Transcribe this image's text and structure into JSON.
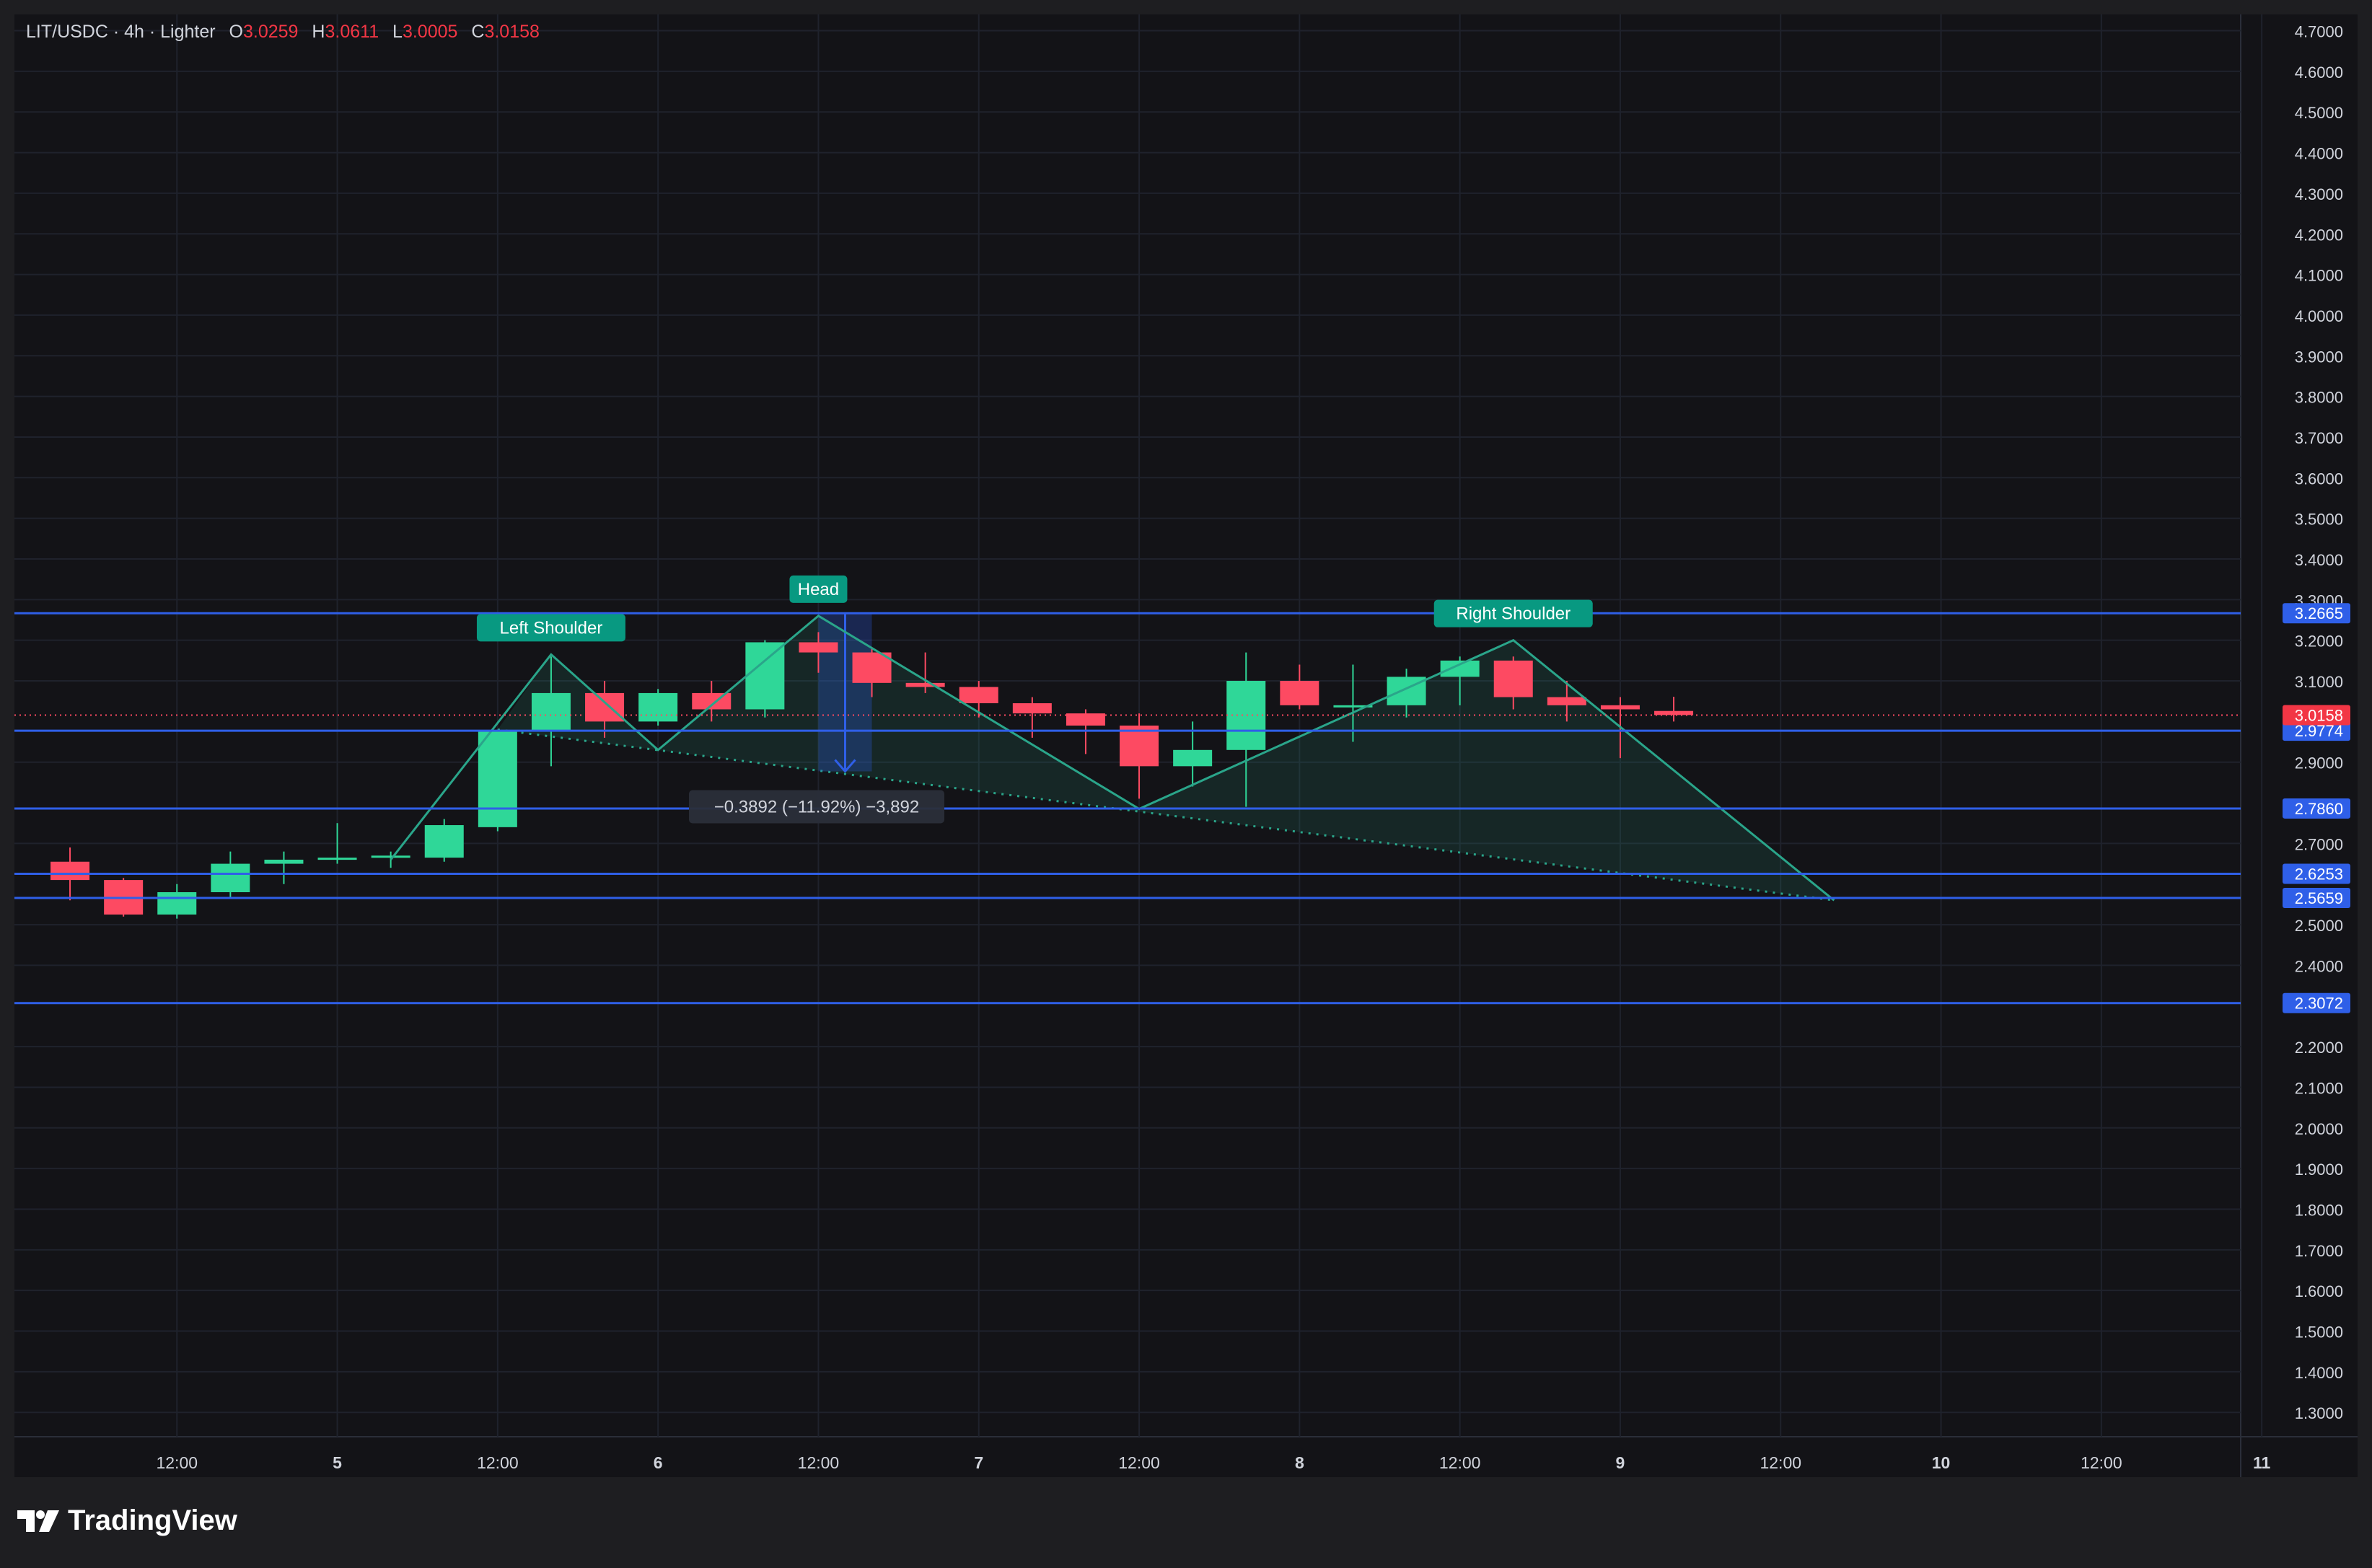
{
  "header": {
    "symbol": "LIT/USDC · 4h · Lighter",
    "o_label": "O",
    "o_value": "3.0259",
    "h_label": "H",
    "h_value": "3.0611",
    "l_label": "L",
    "l_value": "3.0005",
    "c_label": "C",
    "c_value": "3.0158"
  },
  "brand": {
    "name": "TradingView",
    "icon": "tradingview-logo-icon"
  },
  "colors": {
    "background": "#131317",
    "up": "#2fd798",
    "down": "#fd4a62",
    "level": "#2f5fe8",
    "pattern": "#2aa58a",
    "text": "#d1d4dc"
  },
  "chart_data": {
    "type": "candlestick",
    "symbol": "LIT/USDC",
    "interval": "4h",
    "exchange": "Lighter",
    "ylim": [
      1.24,
      4.74
    ],
    "y_ticks": [
      "4.7000",
      "4.6000",
      "4.5000",
      "4.4000",
      "4.3000",
      "4.2000",
      "4.1000",
      "4.0000",
      "3.9000",
      "3.8000",
      "3.7000",
      "3.6000",
      "3.5000",
      "3.4000",
      "3.3000",
      "3.2000",
      "3.1000",
      "2.9000",
      "2.7000",
      "2.5000",
      "2.4000",
      "2.2000",
      "2.1000",
      "2.0000",
      "1.9000",
      "1.8000",
      "1.7000",
      "1.6000",
      "1.5000",
      "1.4000",
      "1.3000"
    ],
    "x_ticks": [
      {
        "i": 2.5,
        "label": "12:00"
      },
      {
        "i": 5.5,
        "label": "5"
      },
      {
        "i": 8.5,
        "label": "12:00"
      },
      {
        "i": 11.5,
        "label": "6"
      },
      {
        "i": 14.5,
        "label": "12:00"
      },
      {
        "i": 17.5,
        "label": "7"
      },
      {
        "i": 20.5,
        "label": "12:00"
      },
      {
        "i": 23.5,
        "label": "8"
      },
      {
        "i": 26.5,
        "label": "12:00"
      },
      {
        "i": 29.5,
        "label": "9"
      },
      {
        "i": 32.5,
        "label": "12:00"
      },
      {
        "i": 35.5,
        "label": "10"
      },
      {
        "i": 38.5,
        "label": "12:00"
      },
      {
        "i": 41.5,
        "label": "11"
      }
    ],
    "candles": [
      {
        "o": 2.655,
        "h": 2.69,
        "l": 2.56,
        "c": 2.61
      },
      {
        "o": 2.61,
        "h": 2.615,
        "l": 2.52,
        "c": 2.525
      },
      {
        "o": 2.525,
        "h": 2.6,
        "l": 2.515,
        "c": 2.58
      },
      {
        "o": 2.58,
        "h": 2.68,
        "l": 2.565,
        "c": 2.65
      },
      {
        "o": 2.65,
        "h": 2.68,
        "l": 2.6,
        "c": 2.66
      },
      {
        "o": 2.66,
        "h": 2.75,
        "l": 2.65,
        "c": 2.665
      },
      {
        "o": 2.665,
        "h": 2.68,
        "l": 2.64,
        "c": 2.67
      },
      {
        "o": 2.665,
        "h": 2.76,
        "l": 2.655,
        "c": 2.745
      },
      {
        "o": 2.74,
        "h": 2.98,
        "l": 2.73,
        "c": 2.975
      },
      {
        "o": 2.975,
        "h": 3.16,
        "l": 2.89,
        "c": 3.07
      },
      {
        "o": 3.07,
        "h": 3.1,
        "l": 2.96,
        "c": 3.0
      },
      {
        "o": 3.0,
        "h": 3.08,
        "l": 2.99,
        "c": 3.07
      },
      {
        "o": 3.07,
        "h": 3.1,
        "l": 3.0,
        "c": 3.03
      },
      {
        "o": 3.03,
        "h": 3.2,
        "l": 3.01,
        "c": 3.195
      },
      {
        "o": 3.195,
        "h": 3.22,
        "l": 3.12,
        "c": 3.17
      },
      {
        "o": 3.17,
        "h": 3.18,
        "l": 3.06,
        "c": 3.095
      },
      {
        "o": 3.095,
        "h": 3.17,
        "l": 3.07,
        "c": 3.085
      },
      {
        "o": 3.085,
        "h": 3.1,
        "l": 3.01,
        "c": 3.045
      },
      {
        "o": 3.045,
        "h": 3.06,
        "l": 2.96,
        "c": 3.02
      },
      {
        "o": 3.02,
        "h": 3.03,
        "l": 2.92,
        "c": 2.99
      },
      {
        "o": 2.99,
        "h": 3.02,
        "l": 2.81,
        "c": 2.89
      },
      {
        "o": 2.89,
        "h": 3.0,
        "l": 2.84,
        "c": 2.93
      },
      {
        "o": 2.93,
        "h": 3.17,
        "l": 2.79,
        "c": 3.1
      },
      {
        "o": 3.1,
        "h": 3.14,
        "l": 3.03,
        "c": 3.04
      },
      {
        "o": 3.04,
        "h": 3.14,
        "l": 2.95,
        "c": 3.04
      },
      {
        "o": 3.04,
        "h": 3.13,
        "l": 3.01,
        "c": 3.11
      },
      {
        "o": 3.11,
        "h": 3.16,
        "l": 3.04,
        "c": 3.15
      },
      {
        "o": 3.15,
        "h": 3.16,
        "l": 3.03,
        "c": 3.06
      },
      {
        "o": 3.06,
        "h": 3.1,
        "l": 3.0,
        "c": 3.04
      },
      {
        "o": 3.04,
        "h": 3.06,
        "l": 2.91,
        "c": 3.03
      },
      {
        "o": 3.026,
        "h": 3.061,
        "l": 3.0,
        "c": 3.016
      }
    ],
    "levels": [
      {
        "value": 3.2665,
        "label": "3.2665"
      },
      {
        "value": 2.9774,
        "label": "2.9774"
      },
      {
        "value": 2.786,
        "label": "2.7860"
      },
      {
        "value": 2.6253,
        "label": "2.6253"
      },
      {
        "value": 2.5659,
        "label": "2.5659"
      },
      {
        "value": 2.3072,
        "label": "2.3072"
      }
    ],
    "last_price": {
      "value": 3.0158,
      "label": "3.0158"
    },
    "pattern": {
      "name": "head-and-shoulders",
      "points": [
        {
          "i": 6.5,
          "v": 2.66
        },
        {
          "i": 9.5,
          "v": 3.165
        },
        {
          "i": 11.5,
          "v": 2.93
        },
        {
          "i": 14.5,
          "v": 3.26
        },
        {
          "i": 20.5,
          "v": 2.785
        },
        {
          "i": 27.5,
          "v": 3.2
        },
        {
          "i": 33.5,
          "v": 2.56
        }
      ],
      "neckline": [
        {
          "i": 8.5,
          "v": 2.98
        },
        {
          "i": 33.5,
          "v": 2.56
        }
      ],
      "labels": [
        {
          "text": "Left Shoulder",
          "i": 9.5,
          "v": 3.165
        },
        {
          "text": "Head",
          "i": 14.5,
          "v": 3.26
        },
        {
          "text": "Right Shoulder",
          "i": 27.5,
          "v": 3.2
        }
      ]
    },
    "measure": {
      "from_i": 14.5,
      "to_i": 15.5,
      "top": 3.2665,
      "bottom": 2.8773,
      "label": "−0.3892 (−11.92%) −3,892"
    }
  }
}
